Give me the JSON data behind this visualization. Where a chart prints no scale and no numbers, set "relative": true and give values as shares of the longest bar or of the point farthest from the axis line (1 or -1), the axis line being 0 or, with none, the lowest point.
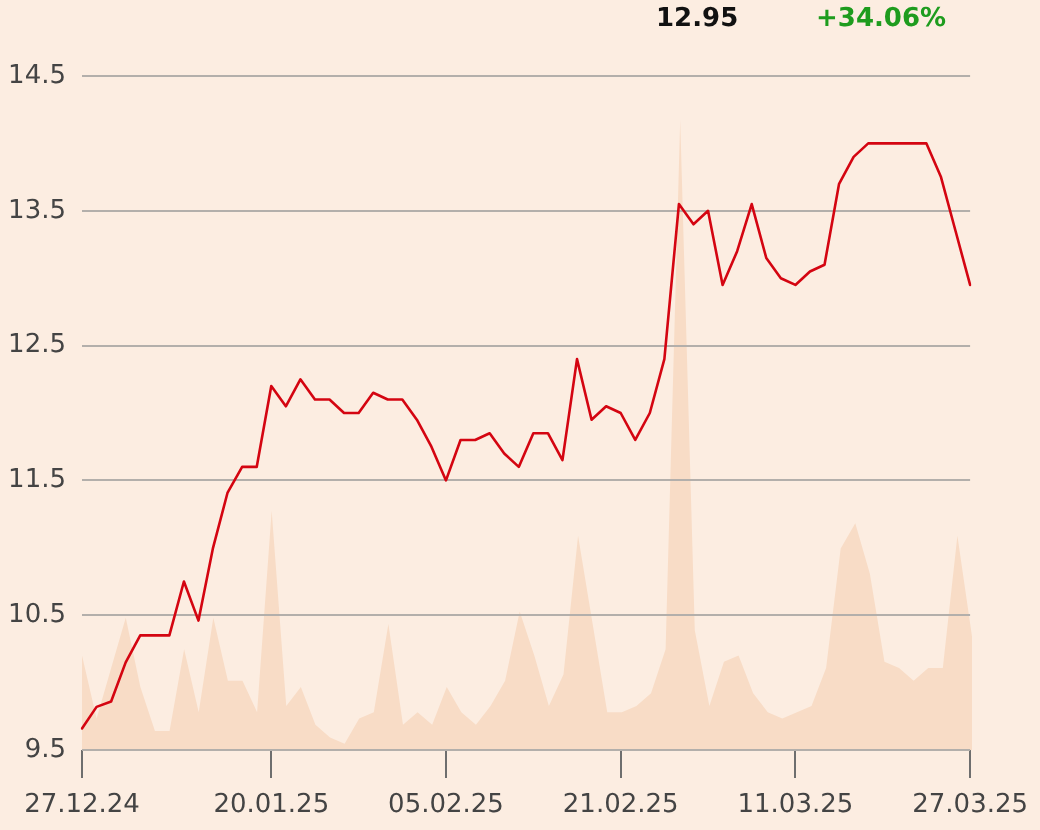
{
  "chart_data": [
    {
      "type": "line",
      "annotations": [
        "12.95",
        "+34.06%"
      ],
      "categories": [
        "27.12.24",
        null,
        null,
        null,
        null,
        null,
        null,
        null,
        null,
        null,
        null,
        null,
        null,
        "20.01.25",
        null,
        null,
        null,
        null,
        null,
        null,
        null,
        null,
        null,
        null,
        null,
        "05.02.25",
        null,
        null,
        null,
        null,
        null,
        null,
        null,
        null,
        null,
        null,
        null,
        "21.02.25",
        null,
        null,
        null,
        null,
        null,
        null,
        null,
        null,
        null,
        null,
        null,
        "11.03.25",
        null,
        null,
        null,
        null,
        null,
        null,
        null,
        null,
        null,
        null,
        null,
        "27.03.25"
      ],
      "color": "#d40511",
      "values": [
        9.66,
        9.82,
        9.86,
        10.15,
        10.35,
        10.35,
        10.35,
        10.75,
        10.46,
        11.0,
        11.41,
        11.6,
        11.6,
        12.2,
        12.05,
        12.25,
        12.1,
        12.1,
        12.0,
        12.0,
        12.15,
        12.1,
        12.1,
        11.95,
        11.75,
        11.5,
        11.8,
        11.8,
        11.85,
        11.7,
        11.6,
        11.85,
        11.85,
        11.65,
        12.4,
        11.95,
        12.05,
        12.0,
        11.8,
        12.0,
        12.4,
        13.55,
        13.4,
        13.5,
        12.95,
        13.2,
        13.55,
        13.15,
        13.0,
        12.95,
        13.05,
        13.1,
        13.7,
        13.9,
        14.0,
        14.0,
        14.0,
        14.0,
        14.0,
        13.75,
        13.35,
        12.95
      ],
      "ylim": [
        9.5,
        14.5
      ],
      "yticks": [
        9.5,
        10.5,
        11.5,
        12.5,
        13.5,
        14.5
      ],
      "grid": "y"
    },
    {
      "type": "area",
      "relative": true,
      "categories": [
        null,
        null,
        null,
        null,
        null,
        null,
        null,
        null,
        null,
        null,
        null,
        null,
        null,
        null,
        null,
        null,
        null,
        null,
        null,
        null,
        null,
        null,
        null,
        null,
        null,
        null,
        null,
        null,
        null,
        null,
        null,
        null,
        null,
        null,
        null,
        null,
        null,
        null,
        null,
        null,
        null,
        null,
        null,
        null,
        null,
        null,
        null,
        null,
        null,
        null,
        null,
        null,
        null,
        null,
        null,
        null,
        null,
        null,
        null,
        null,
        null,
        null
      ],
      "color": "#f8dcc6",
      "values": [
        0.15,
        0.05,
        0.13,
        0.21,
        0.1,
        0.03,
        0.03,
        0.16,
        0.06,
        0.21,
        0.11,
        0.11,
        0.06,
        0.38,
        0.07,
        0.1,
        0.04,
        0.02,
        0.01,
        0.05,
        0.06,
        0.2,
        0.04,
        0.06,
        0.04,
        0.1,
        0.06,
        0.04,
        0.07,
        0.11,
        0.22,
        0.15,
        0.07,
        0.12,
        0.34,
        0.2,
        0.06,
        0.06,
        0.07,
        0.09,
        0.16,
        1,
        0.19,
        0.07,
        0.14,
        0.15,
        0.09,
        0.06,
        0.05,
        0.06,
        0.07,
        0.13,
        0.32,
        0.36,
        0.28,
        0.14,
        0.13,
        0.11,
        0.13,
        0.13,
        0.34,
        0.18
      ]
    }
  ]
}
